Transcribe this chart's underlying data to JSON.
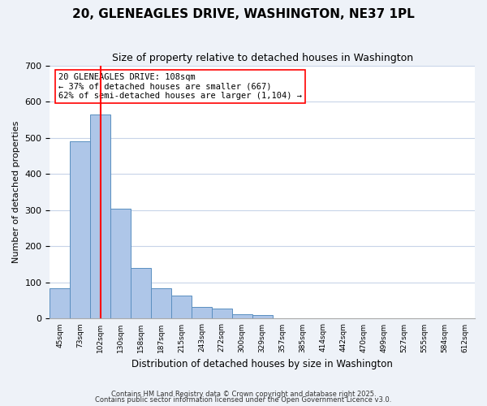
{
  "title": "20, GLENEAGLES DRIVE, WASHINGTON, NE37 1PL",
  "subtitle": "Size of property relative to detached houses in Washington",
  "xlabel": "Distribution of detached houses by size in Washington",
  "ylabel": "Number of detached properties",
  "bin_labels": [
    "45sqm",
    "73sqm",
    "102sqm",
    "130sqm",
    "158sqm",
    "187sqm",
    "215sqm",
    "243sqm",
    "272sqm",
    "300sqm",
    "329sqm",
    "357sqm",
    "385sqm",
    "414sqm",
    "442sqm",
    "470sqm",
    "499sqm",
    "527sqm",
    "555sqm",
    "584sqm",
    "612sqm"
  ],
  "bar_heights": [
    83,
    490,
    565,
    305,
    140,
    85,
    63,
    33,
    28,
    12,
    10,
    0,
    0,
    0,
    0,
    0,
    0,
    0,
    0,
    0,
    0
  ],
  "bar_color": "#aec6e8",
  "bar_edge_color": "#5a8fc0",
  "red_line_x": 2,
  "annotation_text": "20 GLENEAGLES DRIVE: 108sqm\n← 37% of detached houses are smaller (667)\n62% of semi-detached houses are larger (1,104) →",
  "ylim": [
    0,
    700
  ],
  "yticks": [
    0,
    100,
    200,
    300,
    400,
    500,
    600,
    700
  ],
  "footnote1": "Contains HM Land Registry data © Crown copyright and database right 2025.",
  "footnote2": "Contains public sector information licensed under the Open Government Licence v3.0.",
  "bg_color": "#eef2f8",
  "plot_bg_color": "#ffffff"
}
